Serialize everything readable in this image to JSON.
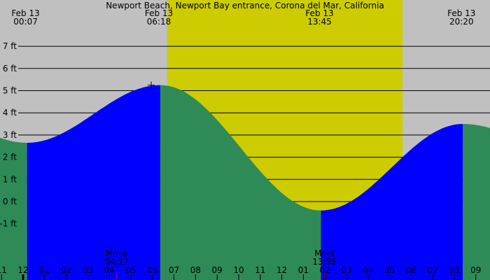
{
  "chart_data": {
    "type": "area",
    "title": "Newport Beach, Newport Bay entrance, Corona del Mar, California",
    "y_unit": "ft",
    "ylim": [
      -1.5,
      8.5
    ],
    "y_ticks": [
      7,
      6,
      5,
      4,
      3,
      2,
      1,
      0,
      -1
    ],
    "y_tick_labels": [
      "7 ft",
      "6 ft",
      "5 ft",
      "4 ft",
      "3 ft",
      "2 ft",
      "1 ft",
      "0 ft",
      "-1 ft"
    ],
    "grid": true,
    "x_hour_labels": [
      "11",
      "12",
      "01",
      "02",
      "03",
      "04",
      "05",
      "06",
      "07",
      "08",
      "09",
      "10",
      "11",
      "12",
      "01",
      "02",
      "03",
      "04",
      "05",
      "06",
      "07",
      "08",
      "09"
    ],
    "x_hour_range": [
      -1,
      21
    ],
    "extremes": [
      {
        "date": "Feb 13",
        "time": "00:07",
        "type": "low",
        "height_ft": 2.65
      },
      {
        "date": "Feb 13",
        "time": "06:18",
        "type": "high",
        "height_ft": 5.25
      },
      {
        "date": "Feb 13",
        "time": "13:45",
        "type": "low",
        "height_ft": -0.4
      },
      {
        "date": "Feb 13",
        "time": "20:20",
        "type": "high",
        "height_ft": 3.5
      }
    ],
    "daylight": {
      "start": "06:37",
      "end": "17:32"
    },
    "moon_events": [
      {
        "label": "Mrise",
        "time": "04:17"
      },
      {
        "label": "Mset",
        "time": "13:55"
      }
    ],
    "colors": {
      "background": "#c0c0c0",
      "daylight": "#cccc00",
      "rising": "#0000ff",
      "falling": "#2e8b57",
      "moon_tick": "#ff0000",
      "grid": "#000000"
    }
  }
}
